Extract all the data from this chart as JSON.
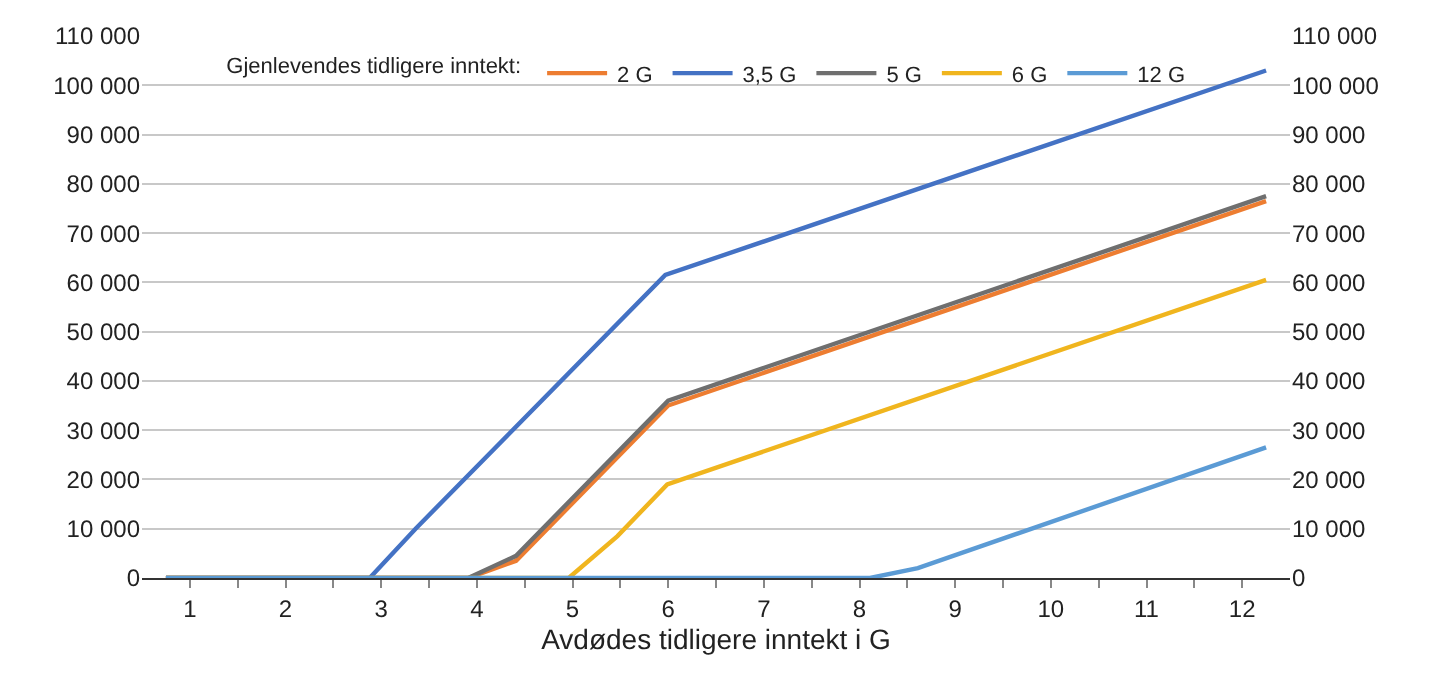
{
  "chart_data": {
    "type": "line",
    "xlabel": "Avdødes tidligere inntekt i G",
    "legend_title": "Gjenlevendes tidligere inntekt:",
    "legend": "top",
    "grid": "y",
    "line_style": "solid",
    "marker": "none",
    "xlim": [
      0.5,
      12.5
    ],
    "xticks": [
      1,
      {
        "value": 1.5,
        "label": null
      },
      2,
      {
        "value": 2.5,
        "label": null
      },
      3,
      {
        "value": 3.5,
        "label": null
      },
      4,
      {
        "value": 4.5,
        "label": null
      },
      5,
      {
        "value": 5.5,
        "label": null
      },
      6,
      {
        "value": 6.5,
        "label": null
      },
      7,
      {
        "value": 7.5,
        "label": null
      },
      8,
      {
        "value": 8.5,
        "label": null
      },
      9,
      {
        "value": 9.5,
        "label": null
      },
      10,
      {
        "value": 10.5,
        "label": null
      },
      11,
      {
        "value": 11.5,
        "label": null
      },
      12
    ],
    "ylim": [
      0,
      110000
    ],
    "yticks": [
      0,
      {
        "value": 10000,
        "label": "10 000"
      },
      {
        "value": 20000,
        "label": "20 000"
      },
      {
        "value": 30000,
        "label": "30 000"
      },
      {
        "value": 40000,
        "label": "40 000"
      },
      {
        "value": 50000,
        "label": "50 000"
      },
      {
        "value": 60000,
        "label": "60 000"
      },
      {
        "value": 70000,
        "label": "70 000"
      },
      {
        "value": 80000,
        "label": "80 000"
      },
      {
        "value": 90000,
        "label": "90 000"
      },
      {
        "value": 100000,
        "label": "100 000"
      },
      {
        "value": 110000,
        "label": "110 000"
      }
    ],
    "y2lim": [
      0,
      110000
    ],
    "y2ticks": [
      0,
      {
        "value": 10000,
        "label": "10 000"
      },
      {
        "value": 20000,
        "label": "20 000"
      },
      {
        "value": 30000,
        "label": "30 000"
      },
      {
        "value": 40000,
        "label": "40 000"
      },
      {
        "value": 50000,
        "label": "50 000"
      },
      {
        "value": 60000,
        "label": "60 000"
      },
      {
        "value": 70000,
        "label": "70 000"
      },
      {
        "value": 80000,
        "label": "80 000"
      },
      {
        "value": 90000,
        "label": "90 000"
      },
      {
        "value": 100000,
        "label": "100 000"
      },
      {
        "value": 110000,
        "label": "110 000"
      }
    ],
    "series": [
      {
        "name": "2 G",
        "color": "#ed7d31",
        "x": [
          0.75,
          3.91,
          4.41,
          6.0,
          12.25
        ],
        "values": [
          0,
          0,
          3500,
          35000,
          76500
        ]
      },
      {
        "name": "3,5 G",
        "color": "#4472c4",
        "x": [
          0.75,
          2.88,
          3.36,
          5.97,
          12.25
        ],
        "values": [
          0,
          0,
          10000,
          61500,
          103000
        ]
      },
      {
        "name": "5 G",
        "color": "#6f6f6f",
        "x": [
          0.75,
          3.91,
          4.41,
          6.0,
          12.25
        ],
        "values": [
          0,
          0,
          4500,
          36000,
          77500
        ]
      },
      {
        "name": "6 G",
        "color": "#f0b51e",
        "x": [
          0.75,
          4.96,
          5.47,
          5.99,
          12.25
        ],
        "values": [
          0,
          0,
          8500,
          19000,
          60500
        ]
      },
      {
        "name": "12 G",
        "color": "#5b9bd5",
        "x": [
          0.75,
          8.11,
          8.61,
          12.25
        ],
        "values": [
          0,
          0,
          2000,
          26500
        ]
      }
    ]
  }
}
